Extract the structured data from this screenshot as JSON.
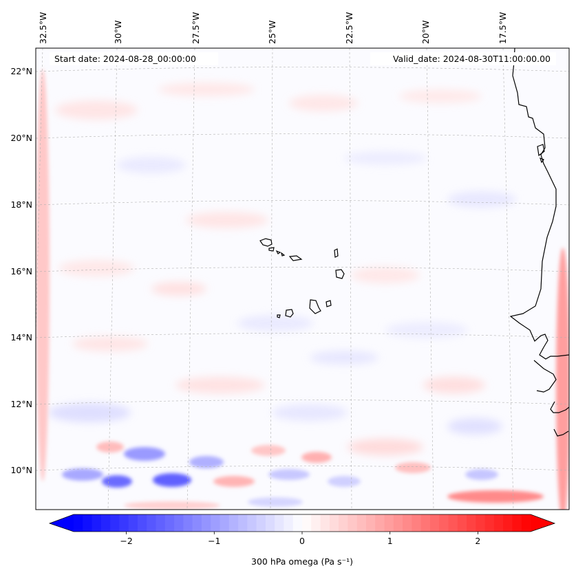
{
  "map": {
    "start_label": "Start date: 2024-08-28_00:00:00",
    "valid_label": "Valid_date: 2024-08-30T11:00:00.00",
    "lon_labels": [
      "32.5°W",
      "30°W",
      "27.5°W",
      "25°W",
      "22.5°W",
      "20°W",
      "17.5°W"
    ],
    "lat_labels": [
      "22°N",
      "20°N",
      "18°N",
      "16°N",
      "14°N",
      "12°N",
      "10°N"
    ],
    "grid": true,
    "coastline_color": "#000000"
  },
  "colorbar": {
    "label": "300 hPa omega (Pa s⁻¹)",
    "min": -2.6,
    "max": 2.6,
    "ticks": [
      -2,
      -1,
      0,
      1,
      2
    ],
    "tick_labels": [
      "−2",
      "−1",
      "0",
      "1",
      "2"
    ],
    "extend": "both",
    "colormap": "bwr",
    "low_color": "#0000ff",
    "mid_color": "#ffffff",
    "high_color": "#ff0000"
  }
}
